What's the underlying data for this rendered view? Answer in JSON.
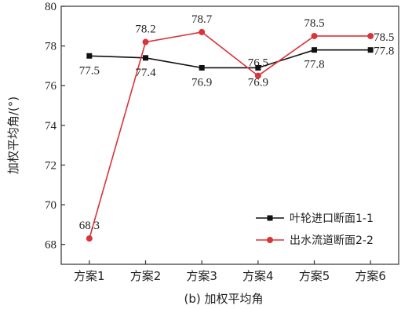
{
  "chart_data": {
    "type": "line",
    "categories": [
      "方案1",
      "方案2",
      "方案3",
      "方案4",
      "方案5",
      "方案6"
    ],
    "ylabel": "加权平均角/(°)",
    "ylim": [
      67,
      80
    ],
    "yticks": [
      68,
      70,
      72,
      74,
      76,
      78,
      80
    ],
    "caption": "(b) 加权平均角",
    "legend_position": "bottom-right",
    "series": [
      {
        "name": "叶轮进口断面1-1",
        "color": "#111111",
        "marker": "square",
        "values": [
          77.5,
          77.4,
          76.9,
          76.9,
          77.8,
          77.8
        ],
        "labels": [
          "77.5",
          "77.4",
          "76.9",
          "76.9",
          "77.8",
          "77.8"
        ],
        "label_placement": [
          "below",
          "below",
          "below",
          "below",
          "below",
          "right"
        ]
      },
      {
        "name": "出水流道断面2-2",
        "color": "#d9343a",
        "marker": "circle",
        "values": [
          68.3,
          78.2,
          78.7,
          76.5,
          78.5,
          78.5
        ],
        "labels": [
          "68.3",
          "78.2",
          "78.7",
          "76.5",
          "78.5",
          "78.5"
        ],
        "label_placement": [
          "above",
          "above",
          "above",
          "above",
          "above",
          "right"
        ]
      }
    ]
  }
}
